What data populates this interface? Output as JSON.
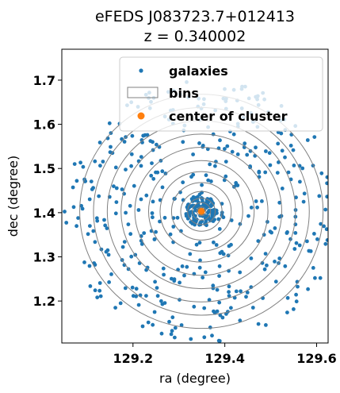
{
  "chart_data": {
    "type": "scatter",
    "title": "eFEDS J083723.7+012413",
    "subtitle": "z = 0.340002",
    "xlabel": "ra (degree)",
    "ylabel": "dec (degree)",
    "xlim": [
      129.045,
      129.625
    ],
    "ylim": [
      1.105,
      1.77
    ],
    "xticks": [
      129.2,
      129.4,
      129.6
    ],
    "xtick_labels": [
      "129.2",
      "129.4",
      "129.6"
    ],
    "yticks": [
      1.2,
      1.3,
      1.4,
      1.5,
      1.6,
      1.7
    ],
    "ytick_labels": [
      "1.2",
      "1.3",
      "1.4",
      "1.5",
      "1.6",
      "1.7"
    ],
    "grid": false,
    "legend_position": "top-right",
    "center": {
      "ra": 129.349,
      "dec": 1.403
    },
    "bin_radii_deg": [
      0.01,
      0.02,
      0.03,
      0.045,
      0.065,
      0.09,
      0.115,
      0.145,
      0.175,
      0.205,
      0.235,
      0.265
    ],
    "series": [
      {
        "name": "galaxies",
        "kind": "points",
        "color": "#1f77b4",
        "count": 560
      },
      {
        "name": "bins",
        "kind": "circles",
        "color": "#808080"
      },
      {
        "name": "center of cluster",
        "kind": "point",
        "color": "#ff7f0e"
      }
    ]
  }
}
